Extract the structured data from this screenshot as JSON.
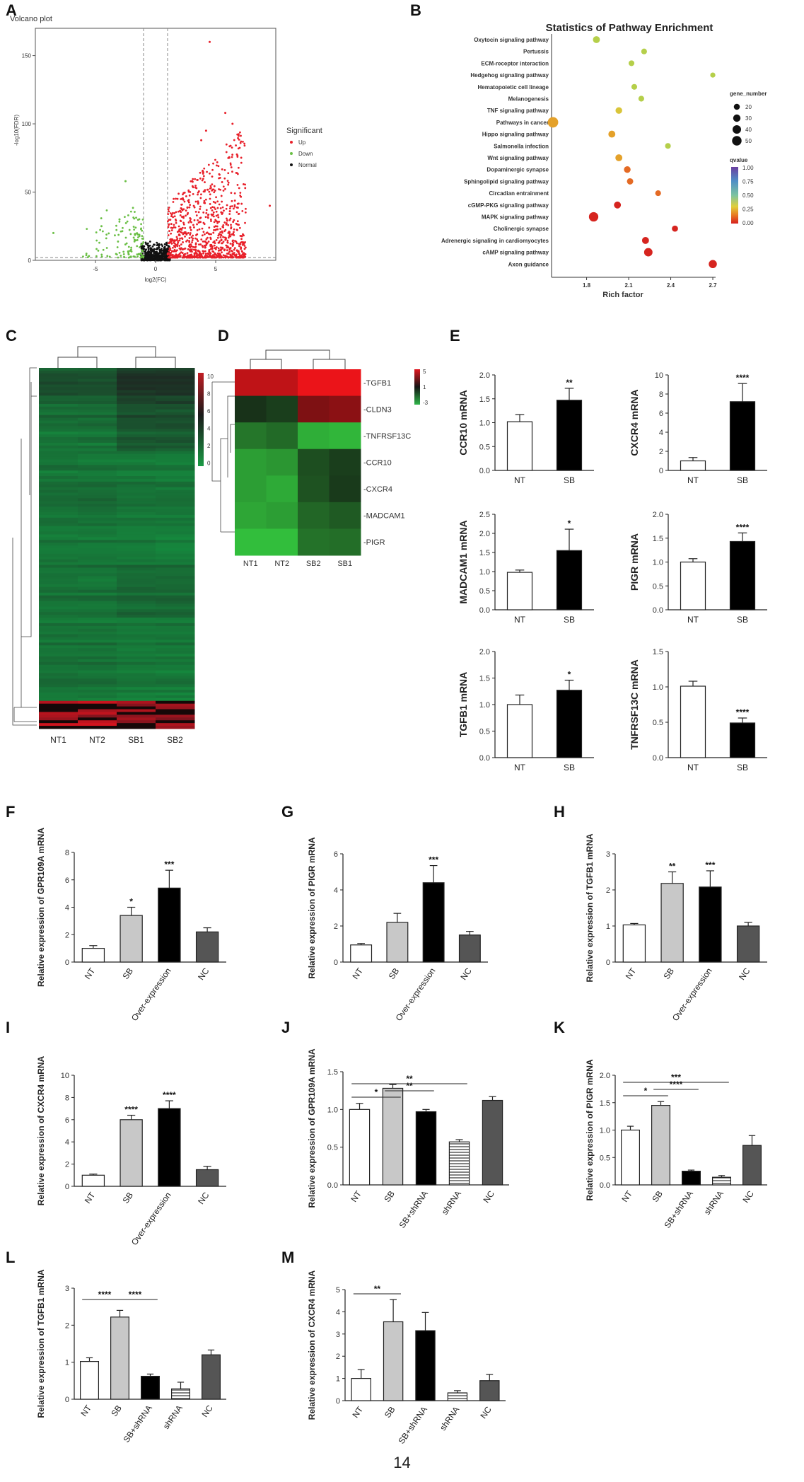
{
  "page_number": "14",
  "panel_labels": [
    "A",
    "B",
    "C",
    "D",
    "E",
    "F",
    "G",
    "H",
    "I",
    "J",
    "K",
    "L",
    "M"
  ],
  "chart_data": [
    {
      "panel": "A",
      "type": "scatter",
      "title": "Volcano plot",
      "xlabel": "log2(FC)",
      "ylabel": "-log10(FDR)",
      "xlim": [
        -10,
        10
      ],
      "ylim": [
        0,
        170
      ],
      "xticks": [
        "-5",
        "0",
        "5"
      ],
      "yticks": [
        "0",
        "50",
        "100",
        "150"
      ],
      "legend_title": "Significant",
      "legend": [
        "Up",
        "Down",
        "Normal"
      ],
      "colors": {
        "Up": "#e8202a",
        "Down": "#6abf45",
        "Normal": "#111111"
      }
    },
    {
      "panel": "B",
      "type": "scatter",
      "title": "Statistics of Pathway Enrichment",
      "xlabel": "Rich factor",
      "xticks": [
        "1.8",
        "2.1",
        "2.4",
        "2.7"
      ],
      "xlim": [
        1.55,
        2.72
      ],
      "pathways": [
        {
          "name": "Oxytocin signaling pathway",
          "rich": 1.87,
          "genes": 22,
          "q": 0.4
        },
        {
          "name": "Pertussis",
          "rich": 2.21,
          "genes": 15,
          "q": 0.35
        },
        {
          "name": "ECM-receptor interaction",
          "rich": 2.12,
          "genes": 15,
          "q": 0.35
        },
        {
          "name": "Hedgehog signaling pathway",
          "rich": 2.7,
          "genes": 12,
          "q": 0.35
        },
        {
          "name": "Hematopoietic cell lineage",
          "rich": 2.14,
          "genes": 15,
          "q": 0.35
        },
        {
          "name": "Melanogenesis",
          "rich": 2.19,
          "genes": 15,
          "q": 0.35
        },
        {
          "name": "TNF signaling pathway",
          "rich": 2.03,
          "genes": 20,
          "q": 0.25
        },
        {
          "name": "Pathways in cancer",
          "rich": 1.56,
          "genes": 50,
          "q": 0.15
        },
        {
          "name": "Hippo signaling pathway",
          "rich": 1.98,
          "genes": 22,
          "q": 0.15
        },
        {
          "name": "Salmonella infection",
          "rich": 2.38,
          "genes": 15,
          "q": 0.35
        },
        {
          "name": "Wnt signaling pathway",
          "rich": 2.03,
          "genes": 22,
          "q": 0.15
        },
        {
          "name": "Dopaminergic synapse",
          "rich": 2.09,
          "genes": 20,
          "q": 0.1
        },
        {
          "name": "Sphingolipid signaling pathway",
          "rich": 2.11,
          "genes": 18,
          "q": 0.1
        },
        {
          "name": "Circadian entrainment",
          "rich": 2.31,
          "genes": 15,
          "q": 0.1
        },
        {
          "name": "cGMP-PKG signaling pathway",
          "rich": 2.02,
          "genes": 22,
          "q": 0.05
        },
        {
          "name": "MAPK signaling pathway",
          "rich": 1.85,
          "genes": 40,
          "q": 0.02
        },
        {
          "name": "Cholinergic synapse",
          "rich": 2.43,
          "genes": 17,
          "q": 0.02
        },
        {
          "name": "Adrenergic signaling in cardiomyocytes",
          "rich": 2.22,
          "genes": 22,
          "q": 0.02
        },
        {
          "name": "cAMP signaling pathway",
          "rich": 2.24,
          "genes": 32,
          "q": 0.01
        },
        {
          "name": "Axon guidance",
          "rich": 2.7,
          "genes": 30,
          "q": 0.01
        }
      ],
      "size_legend_title": "gene_number",
      "size_legend": [
        "20",
        "30",
        "40",
        "50"
      ],
      "color_legend_title": "qvalue",
      "color_legend": [
        "1.00",
        "0.75",
        "0.50",
        "0.25",
        "0.00"
      ]
    },
    {
      "panel": "C",
      "type": "heatmap",
      "columns": [
        "NT1",
        "NT2",
        "SB1",
        "SB2"
      ],
      "scale": [
        "10",
        "8",
        "6",
        "4",
        "2",
        "0"
      ],
      "colors": {
        "high": "#c11d24",
        "mid": "#111111",
        "low": "#1a8c3a"
      }
    },
    {
      "panel": "D",
      "type": "heatmap",
      "columns": [
        "NT1",
        "NT2",
        "SB2",
        "SB1"
      ],
      "rows": [
        {
          "gene": "TGFB1",
          "color": "#c0392b",
          "cells": [
            4.0,
            4.0,
            5.0,
            5.0
          ]
        },
        {
          "gene": "CLDN3",
          "color": "#c0392b",
          "cells": [
            0.5,
            0.2,
            2.5,
            2.8
          ]
        },
        {
          "gene": "TNFRSF13C",
          "color": "#2fa24a",
          "cells": [
            -1.2,
            -0.9,
            -2.6,
            -2.8
          ]
        },
        {
          "gene": "CCR10",
          "color": "#c0392b",
          "cells": [
            -2.2,
            -2.0,
            -0.2,
            0.2
          ]
        },
        {
          "gene": "CXCR4",
          "color": "#c0392b",
          "cells": [
            -2.2,
            -2.5,
            -0.3,
            0.3
          ]
        },
        {
          "gene": "MADCAM1",
          "color": "#c0392b",
          "cells": [
            -2.4,
            -2.2,
            -0.8,
            -0.5
          ]
        },
        {
          "gene": "PIGR",
          "color": "#c0392b",
          "cells": [
            -3.0,
            -3.2,
            -1.1,
            -1.0
          ]
        }
      ],
      "scale": [
        "5",
        "1",
        "-3"
      ]
    },
    {
      "panel": "E1",
      "type": "bar",
      "ylabel": "CCR10 mRNA",
      "categories": [
        "NT",
        "SB"
      ],
      "values": [
        1.02,
        1.47
      ],
      "errors": [
        0.15,
        0.25
      ],
      "ylim": [
        0,
        2.0
      ],
      "yticks": [
        "0.0",
        "0.5",
        "1.0",
        "1.5",
        "2.0"
      ],
      "sig": [
        "",
        "**"
      ]
    },
    {
      "panel": "E2",
      "type": "bar",
      "ylabel": "CXCR4 mRNA",
      "categories": [
        "NT",
        "SB"
      ],
      "values": [
        1.0,
        7.2
      ],
      "errors": [
        0.35,
        1.9
      ],
      "ylim": [
        0,
        10
      ],
      "yticks": [
        "0",
        "2",
        "4",
        "6",
        "8",
        "10"
      ],
      "sig": [
        "",
        "****"
      ]
    },
    {
      "panel": "E3",
      "type": "bar",
      "ylabel": "MADCAM1 mRNA",
      "categories": [
        "NT",
        "SB"
      ],
      "values": [
        0.98,
        1.55
      ],
      "errors": [
        0.06,
        0.56
      ],
      "ylim": [
        0,
        2.5
      ],
      "yticks": [
        "0.0",
        "0.5",
        "1.0",
        "1.5",
        "2.0",
        "2.5"
      ],
      "sig": [
        "",
        "*"
      ]
    },
    {
      "panel": "E4",
      "type": "bar",
      "ylabel": "PIGR mRNA",
      "categories": [
        "NT",
        "SB"
      ],
      "values": [
        1.0,
        1.43
      ],
      "errors": [
        0.07,
        0.18
      ],
      "ylim": [
        0,
        2.0
      ],
      "yticks": [
        "0.0",
        "0.5",
        "1.0",
        "1.5",
        "2.0"
      ],
      "sig": [
        "",
        "****"
      ]
    },
    {
      "panel": "E5",
      "type": "bar",
      "ylabel": "TGFB1 mRNA",
      "categories": [
        "NT",
        "SB"
      ],
      "values": [
        1.0,
        1.27
      ],
      "errors": [
        0.18,
        0.19
      ],
      "ylim": [
        0,
        2.0
      ],
      "yticks": [
        "0.0",
        "0.5",
        "1.0",
        "1.5",
        "2.0"
      ],
      "sig": [
        "",
        "*"
      ]
    },
    {
      "panel": "E6",
      "type": "bar",
      "ylabel": "TNFRSF13C mRNA",
      "categories": [
        "NT",
        "SB"
      ],
      "values": [
        1.01,
        0.49
      ],
      "errors": [
        0.07,
        0.07
      ],
      "ylim": [
        0,
        1.5
      ],
      "yticks": [
        "0.0",
        "0.5",
        "1.0",
        "1.5"
      ],
      "sig": [
        "",
        "****"
      ]
    },
    {
      "panel": "F",
      "type": "bar",
      "ylabel": "Relative expression of GPR109A mRNA",
      "categories": [
        "NT",
        "SB",
        "Over-expression",
        "NC"
      ],
      "values": [
        1.0,
        3.4,
        5.4,
        2.2
      ],
      "errors": [
        0.2,
        0.6,
        1.3,
        0.3
      ],
      "ylim": [
        0,
        8
      ],
      "yticks": [
        "0",
        "2",
        "4",
        "6",
        "8"
      ],
      "sig": [
        "",
        "*",
        "***",
        ""
      ]
    },
    {
      "panel": "G",
      "type": "bar",
      "ylabel": "Relative expression of PIGR mRNA",
      "categories": [
        "NT",
        "SB",
        "Over-expression",
        "NC"
      ],
      "values": [
        0.95,
        2.2,
        4.4,
        1.5
      ],
      "errors": [
        0.08,
        0.5,
        0.95,
        0.2
      ],
      "ylim": [
        0,
        6
      ],
      "yticks": [
        "0",
        "2",
        "4",
        "6"
      ],
      "sig": [
        "",
        "",
        "***",
        ""
      ]
    },
    {
      "panel": "H",
      "type": "bar",
      "ylabel": "Relative expression of TGFB1 mRNA",
      "categories": [
        "NT",
        "SB",
        "Over-expression",
        "NC"
      ],
      "values": [
        1.03,
        2.18,
        2.08,
        1.0
      ],
      "errors": [
        0.04,
        0.32,
        0.45,
        0.1
      ],
      "ylim": [
        0,
        3
      ],
      "yticks": [
        "0",
        "1",
        "2",
        "3"
      ],
      "sig": [
        "",
        "**",
        "***",
        ""
      ]
    },
    {
      "panel": "I",
      "type": "bar",
      "ylabel": "Relative expression of CXCR4 mRNA",
      "categories": [
        "NT",
        "SB",
        "Over-expression",
        "NC"
      ],
      "values": [
        1.0,
        6.0,
        7.0,
        1.5
      ],
      "errors": [
        0.1,
        0.4,
        0.7,
        0.3
      ],
      "ylim": [
        0,
        10
      ],
      "yticks": [
        "0",
        "2",
        "4",
        "6",
        "8",
        "10"
      ],
      "sig": [
        "",
        "****",
        "****",
        ""
      ]
    },
    {
      "panel": "J",
      "type": "bar",
      "ylabel": "Relative expression of GPR109A mRNA",
      "categories": [
        "NT",
        "SB",
        "SB+shRNA",
        "shRNA",
        "NC"
      ],
      "values": [
        1.0,
        1.28,
        0.97,
        0.57,
        1.12
      ],
      "errors": [
        0.08,
        0.05,
        0.03,
        0.03,
        0.05
      ],
      "ylim": [
        0,
        1.5
      ],
      "yticks": [
        "0.0",
        "0.5",
        "1.0",
        "1.5"
      ],
      "brackets": [
        {
          "from": 0,
          "to": 1,
          "label": "*"
        },
        {
          "from": 1,
          "to": 2,
          "label": "**"
        },
        {
          "from": 0,
          "to": 3,
          "label": "**"
        }
      ]
    },
    {
      "panel": "K",
      "type": "bar",
      "ylabel": "Relative expression of PIGR mRNA",
      "categories": [
        "NT",
        "SB",
        "SB+shRNA",
        "shRNA",
        "NC"
      ],
      "values": [
        1.0,
        1.45,
        0.25,
        0.14,
        0.72
      ],
      "errors": [
        0.07,
        0.07,
        0.02,
        0.03,
        0.18
      ],
      "ylim": [
        0,
        2.0
      ],
      "yticks": [
        "0.0",
        "0.5",
        "1.0",
        "1.5",
        "2.0"
      ],
      "brackets": [
        {
          "from": 0,
          "to": 1,
          "label": "*"
        },
        {
          "from": 1,
          "to": 2,
          "label": "****"
        },
        {
          "from": 0,
          "to": 3,
          "label": "***"
        }
      ]
    },
    {
      "panel": "L",
      "type": "bar",
      "ylabel": "Relative expression of TGFB1 mRNA",
      "categories": [
        "NT",
        "SB",
        "SB+shRNA",
        "shRNA",
        "NC"
      ],
      "values": [
        1.02,
        2.22,
        0.62,
        0.28,
        1.2
      ],
      "errors": [
        0.1,
        0.18,
        0.06,
        0.18,
        0.13
      ],
      "ylim": [
        0,
        3
      ],
      "yticks": [
        "0",
        "1",
        "2",
        "3"
      ],
      "brackets": [
        {
          "from": 0,
          "to": 1,
          "label": "****"
        },
        {
          "from": 1,
          "to": 2,
          "label": "****"
        }
      ]
    },
    {
      "panel": "M",
      "type": "bar",
      "ylabel": "Relative expression of CXCR4 mRNA",
      "categories": [
        "NT",
        "SB",
        "SB+shRNA",
        "shRNA",
        "NC"
      ],
      "values": [
        1.0,
        3.55,
        3.15,
        0.35,
        0.9
      ],
      "errors": [
        0.4,
        1.0,
        0.82,
        0.1,
        0.28
      ],
      "ylim": [
        0,
        5
      ],
      "yticks": [
        "0",
        "1",
        "2",
        "3",
        "4",
        "5"
      ],
      "brackets": [
        {
          "from": 0,
          "to": 1,
          "label": "**"
        }
      ]
    }
  ]
}
